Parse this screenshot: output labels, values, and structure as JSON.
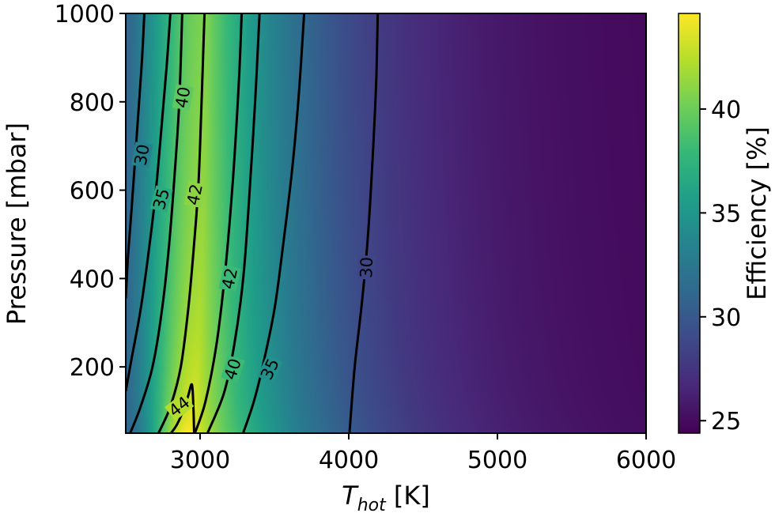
{
  "chart_data": {
    "type": "heatmap",
    "xlabel": {
      "main": "T",
      "sub": "hot",
      "unit": " [K]"
    },
    "ylabel": "Pressure [mbar]",
    "colorbar_label": "Efficiency [%]",
    "xlim": [
      2500,
      6000
    ],
    "ylim": [
      50,
      1000
    ],
    "xticks": [
      3000,
      4000,
      5000,
      6000
    ],
    "yticks": [
      200,
      400,
      600,
      800,
      1000
    ],
    "color_range": [
      24.4,
      44.6
    ],
    "colorbar_ticks": [
      25,
      30,
      35,
      40
    ],
    "colormap": "viridis",
    "colormap_stops": [
      "#440154",
      "#482878",
      "#3e4989",
      "#31688e",
      "#26828e",
      "#1f9e89",
      "#35b779",
      "#6ece58",
      "#b5de2b",
      "#fde725"
    ],
    "contour_line_color": "#000000",
    "contours": [
      {
        "level": 30,
        "label": "30",
        "points": [
          [
            2500,
            355
          ],
          [
            2515,
            450
          ],
          [
            2540,
            560
          ],
          [
            2565,
            680
          ],
          [
            2590,
            800
          ],
          [
            2610,
            900
          ],
          [
            2625,
            1000
          ]
        ]
      },
      {
        "level": 30,
        "label": "30",
        "points": [
          [
            4005,
            50
          ],
          [
            4040,
            200
          ],
          [
            4090,
            350
          ],
          [
            4130,
            500
          ],
          [
            4165,
            700
          ],
          [
            4185,
            850
          ],
          [
            4195,
            1000
          ]
        ]
      },
      {
        "level": 35,
        "label": "35",
        "points": [
          [
            2500,
            145
          ],
          [
            2540,
            220
          ],
          [
            2600,
            330
          ],
          [
            2650,
            450
          ],
          [
            2700,
            590
          ],
          [
            2740,
            740
          ],
          [
            2775,
            880
          ],
          [
            2800,
            1000
          ]
        ]
      },
      {
        "level": 35,
        "label": "35",
        "points": [
          [
            3290,
            50
          ],
          [
            3360,
            120
          ],
          [
            3420,
            200
          ],
          [
            3500,
            330
          ],
          [
            3560,
            480
          ],
          [
            3620,
            650
          ],
          [
            3665,
            820
          ],
          [
            3700,
            1000
          ]
        ]
      },
      {
        "level": 40,
        "label": "40",
        "points": [
          [
            2530,
            50
          ],
          [
            2600,
            110
          ],
          [
            2680,
            200
          ],
          [
            2740,
            320
          ],
          [
            2790,
            470
          ],
          [
            2830,
            640
          ],
          [
            2860,
            800
          ],
          [
            2880,
            1000
          ]
        ]
      },
      {
        "level": 40,
        "label": "40",
        "points": [
          [
            3050,
            50
          ],
          [
            3160,
            140
          ],
          [
            3230,
            250
          ],
          [
            3290,
            400
          ],
          [
            3330,
            580
          ],
          [
            3370,
            800
          ],
          [
            3400,
            1000
          ]
        ]
      },
      {
        "level": 42,
        "label": "42",
        "points": [
          [
            2720,
            50
          ],
          [
            2800,
            110
          ],
          [
            2870,
            200
          ],
          [
            2920,
            330
          ],
          [
            2960,
            480
          ],
          [
            2990,
            620
          ],
          [
            3010,
            800
          ],
          [
            3030,
            1000
          ]
        ]
      },
      {
        "level": 42,
        "label": "42",
        "points": [
          [
            2965,
            50
          ],
          [
            3035,
            120
          ],
          [
            3110,
            250
          ],
          [
            3170,
            420
          ],
          [
            3220,
            620
          ],
          [
            3260,
            840
          ],
          [
            3280,
            1000
          ]
        ]
      },
      {
        "level": 44,
        "label": "44",
        "points": [
          [
            2805,
            50
          ],
          [
            2845,
            70
          ],
          [
            2885,
            100
          ],
          [
            2920,
            135
          ],
          [
            2945,
            160
          ],
          [
            2955,
            110
          ],
          [
            2960,
            50
          ]
        ]
      }
    ],
    "contour_labels": [
      {
        "text": "30",
        "at": [
          2610,
          680
        ],
        "rotation": -80
      },
      {
        "text": "35",
        "at": [
          2740,
          580
        ],
        "rotation": -75
      },
      {
        "text": "40",
        "at": [
          2885,
          810
        ],
        "rotation": -80
      },
      {
        "text": "42",
        "at": [
          2965,
          590
        ],
        "rotation": -78
      },
      {
        "text": "42",
        "at": [
          3200,
          400
        ],
        "rotation": -78
      },
      {
        "text": "40",
        "at": [
          3220,
          195
        ],
        "rotation": -72
      },
      {
        "text": "35",
        "at": [
          3470,
          195
        ],
        "rotation": -65
      },
      {
        "text": "30",
        "at": [
          4120,
          425
        ],
        "rotation": -88
      },
      {
        "text": "44",
        "at": [
          2860,
          110
        ],
        "rotation": -38
      }
    ]
  }
}
